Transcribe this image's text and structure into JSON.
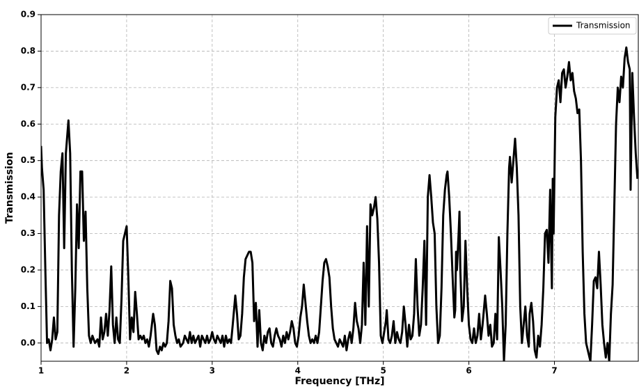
{
  "chart_data": {
    "type": "line",
    "xlabel": "Frequency [THz]",
    "ylabel": "Transmission",
    "xlim": [
      1,
      7.98
    ],
    "ylim": [
      -0.05,
      0.9
    ],
    "xticks": [
      1,
      2,
      3,
      4,
      5,
      6,
      7
    ],
    "yticks": [
      {
        "value": 0,
        "label": "0.0"
      },
      0.1,
      0.2,
      0.3,
      0.4,
      0.5,
      0.6,
      0.7,
      0.8,
      0.9
    ],
    "grid": true,
    "legend": "upper right",
    "x": [
      1,
      1.01,
      1.03,
      1.05,
      1.07,
      1.09,
      1.11,
      1.13,
      1.15,
      1.17,
      1.19,
      1.21,
      1.23,
      1.25,
      1.27,
      1.29,
      1.32,
      1.34,
      1.36,
      1.38,
      1.4,
      1.42,
      1.44,
      1.46,
      1.48,
      1.5,
      1.52,
      1.54,
      1.56,
      1.58,
      1.6,
      1.63,
      1.66,
      1.68,
      1.7,
      1.72,
      1.74,
      1.76,
      1.78,
      1.8,
      1.82,
      1.84,
      1.86,
      1.88,
      1.9,
      1.92,
      1.94,
      1.96,
      1.98,
      2,
      2.02,
      2.04,
      2.06,
      2.08,
      2.1,
      2.12,
      2.14,
      2.16,
      2.18,
      2.2,
      2.22,
      2.24,
      2.26,
      2.28,
      2.31,
      2.33,
      2.35,
      2.37,
      2.39,
      2.41,
      2.43,
      2.45,
      2.47,
      2.49,
      2.51,
      2.53,
      2.55,
      2.57,
      2.59,
      2.61,
      2.63,
      2.66,
      2.68,
      2.7,
      2.72,
      2.74,
      2.76,
      2.78,
      2.8,
      2.82,
      2.84,
      2.86,
      2.88,
      2.9,
      2.92,
      2.94,
      2.96,
      2.98,
      3,
      3.02,
      3.04,
      3.06,
      3.08,
      3.1,
      3.12,
      3.14,
      3.16,
      3.18,
      3.2,
      3.22,
      3.24,
      3.27,
      3.29,
      3.31,
      3.33,
      3.35,
      3.37,
      3.39,
      3.41,
      3.43,
      3.45,
      3.47,
      3.49,
      3.51,
      3.53,
      3.55,
      3.57,
      3.59,
      3.61,
      3.63,
      3.65,
      3.67,
      3.69,
      3.71,
      3.73,
      3.75,
      3.77,
      3.79,
      3.81,
      3.83,
      3.85,
      3.87,
      3.89,
      3.91,
      3.93,
      3.95,
      3.97,
      3.99,
      4.01,
      4.03,
      4.05,
      4.07,
      4.09,
      4.11,
      4.13,
      4.15,
      4.17,
      4.19,
      4.21,
      4.23,
      4.25,
      4.27,
      4.29,
      4.31,
      4.33,
      4.35,
      4.37,
      4.39,
      4.41,
      4.43,
      4.45,
      4.47,
      4.49,
      4.51,
      4.53,
      4.55,
      4.57,
      4.59,
      4.61,
      4.63,
      4.65,
      4.67,
      4.69,
      4.71,
      4.73,
      4.75,
      4.77,
      4.79,
      4.81,
      4.83,
      4.85,
      4.87,
      4.89,
      4.91,
      4.93,
      4.95,
      4.97,
      4.99,
      5.01,
      5.03,
      5.04,
      5.06,
      5.08,
      5.1,
      5.12,
      5.14,
      5.16,
      5.18,
      5.2,
      5.22,
      5.24,
      5.26,
      5.28,
      5.3,
      5.32,
      5.34,
      5.36,
      5.38,
      5.4,
      5.42,
      5.44,
      5.46,
      5.48,
      5.5,
      5.52,
      5.54,
      5.56,
      5.58,
      5.6,
      5.62,
      5.64,
      5.66,
      5.68,
      5.7,
      5.72,
      5.74,
      5.75,
      5.77,
      5.79,
      5.81,
      5.83,
      5.84,
      5.85,
      5.86,
      5.88,
      5.89,
      5.9,
      5.92,
      5.94,
      5.96,
      5.98,
      6,
      6.02,
      6.04,
      6.06,
      6.08,
      6.1,
      6.12,
      6.14,
      6.16,
      6.19,
      6.21,
      6.23,
      6.25,
      6.27,
      6.29,
      6.31,
      6.33,
      6.35,
      6.37,
      6.39,
      6.41,
      6.43,
      6.45,
      6.47,
      6.48,
      6.5,
      6.52,
      6.54,
      6.56,
      6.58,
      6.6,
      6.62,
      6.64,
      6.66,
      6.68,
      6.7,
      6.71,
      6.73,
      6.75,
      6.77,
      6.79,
      6.81,
      6.83,
      6.85,
      6.87,
      6.89,
      6.91,
      6.93,
      6.95,
      6.96,
      6.97,
      6.98,
      6.99,
      7.01,
      7.03,
      7.05,
      7.07,
      7.09,
      7.11,
      7.13,
      7.15,
      7.17,
      7.19,
      7.21,
      7.23,
      7.25,
      7.27,
      7.29,
      7.31,
      7.33,
      7.35,
      7.37,
      7.39,
      7.42,
      7.44,
      7.46,
      7.48,
      7.5,
      7.52,
      7.54,
      7.56,
      7.58,
      7.6,
      7.62,
      7.64,
      7.66,
      7.68,
      7.7,
      7.72,
      7.74,
      7.76,
      7.78,
      7.8,
      7.82,
      7.84,
      7.86,
      7.88,
      7.89,
      7.91,
      7.93,
      7.95,
      7.97
    ],
    "series": [
      {
        "name": "Transmission",
        "color": "#000000",
        "values": [
          0.54,
          0.48,
          0.42,
          0.2,
          0,
          0.01,
          -0.02,
          0.01,
          0.07,
          0.01,
          0.03,
          0.35,
          0.47,
          0.52,
          0.26,
          0.52,
          0.61,
          0.52,
          0.2,
          -0.01,
          0.15,
          0.38,
          0.26,
          0.47,
          0.47,
          0.28,
          0.36,
          0.15,
          0.02,
          0,
          0.02,
          0,
          0.01,
          -0.01,
          0.07,
          0.01,
          0.03,
          0.08,
          0.02,
          0.09,
          0.21,
          0.05,
          0,
          0.07,
          0.01,
          0,
          0.12,
          0.28,
          0.3,
          0.32,
          0.18,
          0.01,
          0.07,
          0.03,
          0.14,
          0.08,
          0.01,
          0.02,
          0.01,
          0.02,
          0,
          0.01,
          -0.01,
          0.02,
          0.08,
          0.05,
          -0.02,
          -0.03,
          -0.01,
          -0.02,
          0,
          -0.01,
          0,
          0.06,
          0.17,
          0.15,
          0.05,
          0.02,
          0,
          0.01,
          -0.01,
          0,
          0.02,
          0.01,
          0,
          0.03,
          0,
          0.02,
          0,
          0.01,
          0.02,
          -0.01,
          0.02,
          0.01,
          0,
          0.02,
          0,
          0.01,
          0.03,
          0.01,
          0,
          0.02,
          0.01,
          0,
          0.02,
          -0.01,
          0.02,
          0,
          0.01,
          0,
          0.05,
          0.13,
          0.08,
          0.01,
          0.02,
          0.08,
          0.18,
          0.23,
          0.24,
          0.25,
          0.25,
          0.22,
          0.06,
          0.11,
          -0.01,
          0.09,
          0,
          -0.02,
          0.02,
          0,
          0.03,
          0.04,
          0,
          -0.01,
          0.02,
          0.04,
          0.02,
          0.01,
          -0.01,
          0.02,
          0,
          0.03,
          0.01,
          0.03,
          0.06,
          0.04,
          0,
          -0.01,
          0.02,
          0.07,
          0.1,
          0.16,
          0.11,
          0.06,
          0.02,
          0,
          0.01,
          0,
          0.02,
          0,
          0.03,
          0.1,
          0.17,
          0.22,
          0.23,
          0.21,
          0.18,
          0.1,
          0.04,
          0.01,
          0,
          -0.01,
          0.01,
          0,
          -0.01,
          0.02,
          -0.02,
          0.01,
          0.03,
          0,
          0.04,
          0.11,
          0.06,
          0.04,
          0,
          0.05,
          0.22,
          0.05,
          0.32,
          0.1,
          0.38,
          0.35,
          0.37,
          0.4,
          0.34,
          0.22,
          0.02,
          0,
          0.03,
          0.06,
          0.09,
          0.01,
          0,
          0.02,
          0.06,
          0,
          0.03,
          0.01,
          0,
          0.03,
          0.1,
          0.05,
          -0.01,
          0.05,
          0.01,
          0.02,
          0.08,
          0.23,
          0.1,
          0.02,
          0.05,
          0.15,
          0.28,
          0.05,
          0.4,
          0.46,
          0.4,
          0.33,
          0.3,
          0.1,
          0,
          0.02,
          0.15,
          0.35,
          0.42,
          0.46,
          0.47,
          0.4,
          0.3,
          0.18,
          0.07,
          0.09,
          0.25,
          0.2,
          0.3,
          0.36,
          0.2,
          0.06,
          0.1,
          0.28,
          0.15,
          0.05,
          0.01,
          0,
          0.04,
          0,
          0.02,
          0.08,
          0.01,
          0.05,
          0.13,
          0.08,
          0.02,
          0.05,
          -0.01,
          0,
          0.08,
          0.01,
          0.29,
          0.2,
          0.1,
          -0.05,
          0.05,
          0.3,
          0.48,
          0.51,
          0.44,
          0.5,
          0.56,
          0.48,
          0.35,
          0.1,
          0,
          0.05,
          0.1,
          0.02,
          -0.01,
          0.08,
          0.11,
          0.06,
          -0.02,
          -0.04,
          0.02,
          -0.01,
          0.05,
          0.15,
          0.3,
          0.31,
          0.22,
          0.42,
          0.28,
          0.15,
          0.45,
          0.3,
          0.62,
          0.7,
          0.72,
          0.66,
          0.74,
          0.75,
          0.7,
          0.73,
          0.77,
          0.72,
          0.74,
          0.69,
          0.67,
          0.63,
          0.64,
          0.5,
          0.25,
          0.08,
          0,
          -0.02,
          -0.05,
          0.05,
          0.17,
          0.18,
          0.15,
          0.25,
          0.16,
          0.05,
          0,
          -0.04,
          0,
          -0.05,
          0.08,
          0.16,
          0.38,
          0.6,
          0.7,
          0.66,
          0.73,
          0.7,
          0.78,
          0.81,
          0.77,
          0.75,
          0.42,
          0.74,
          0.62,
          0.52,
          0.45
        ]
      }
    ]
  }
}
